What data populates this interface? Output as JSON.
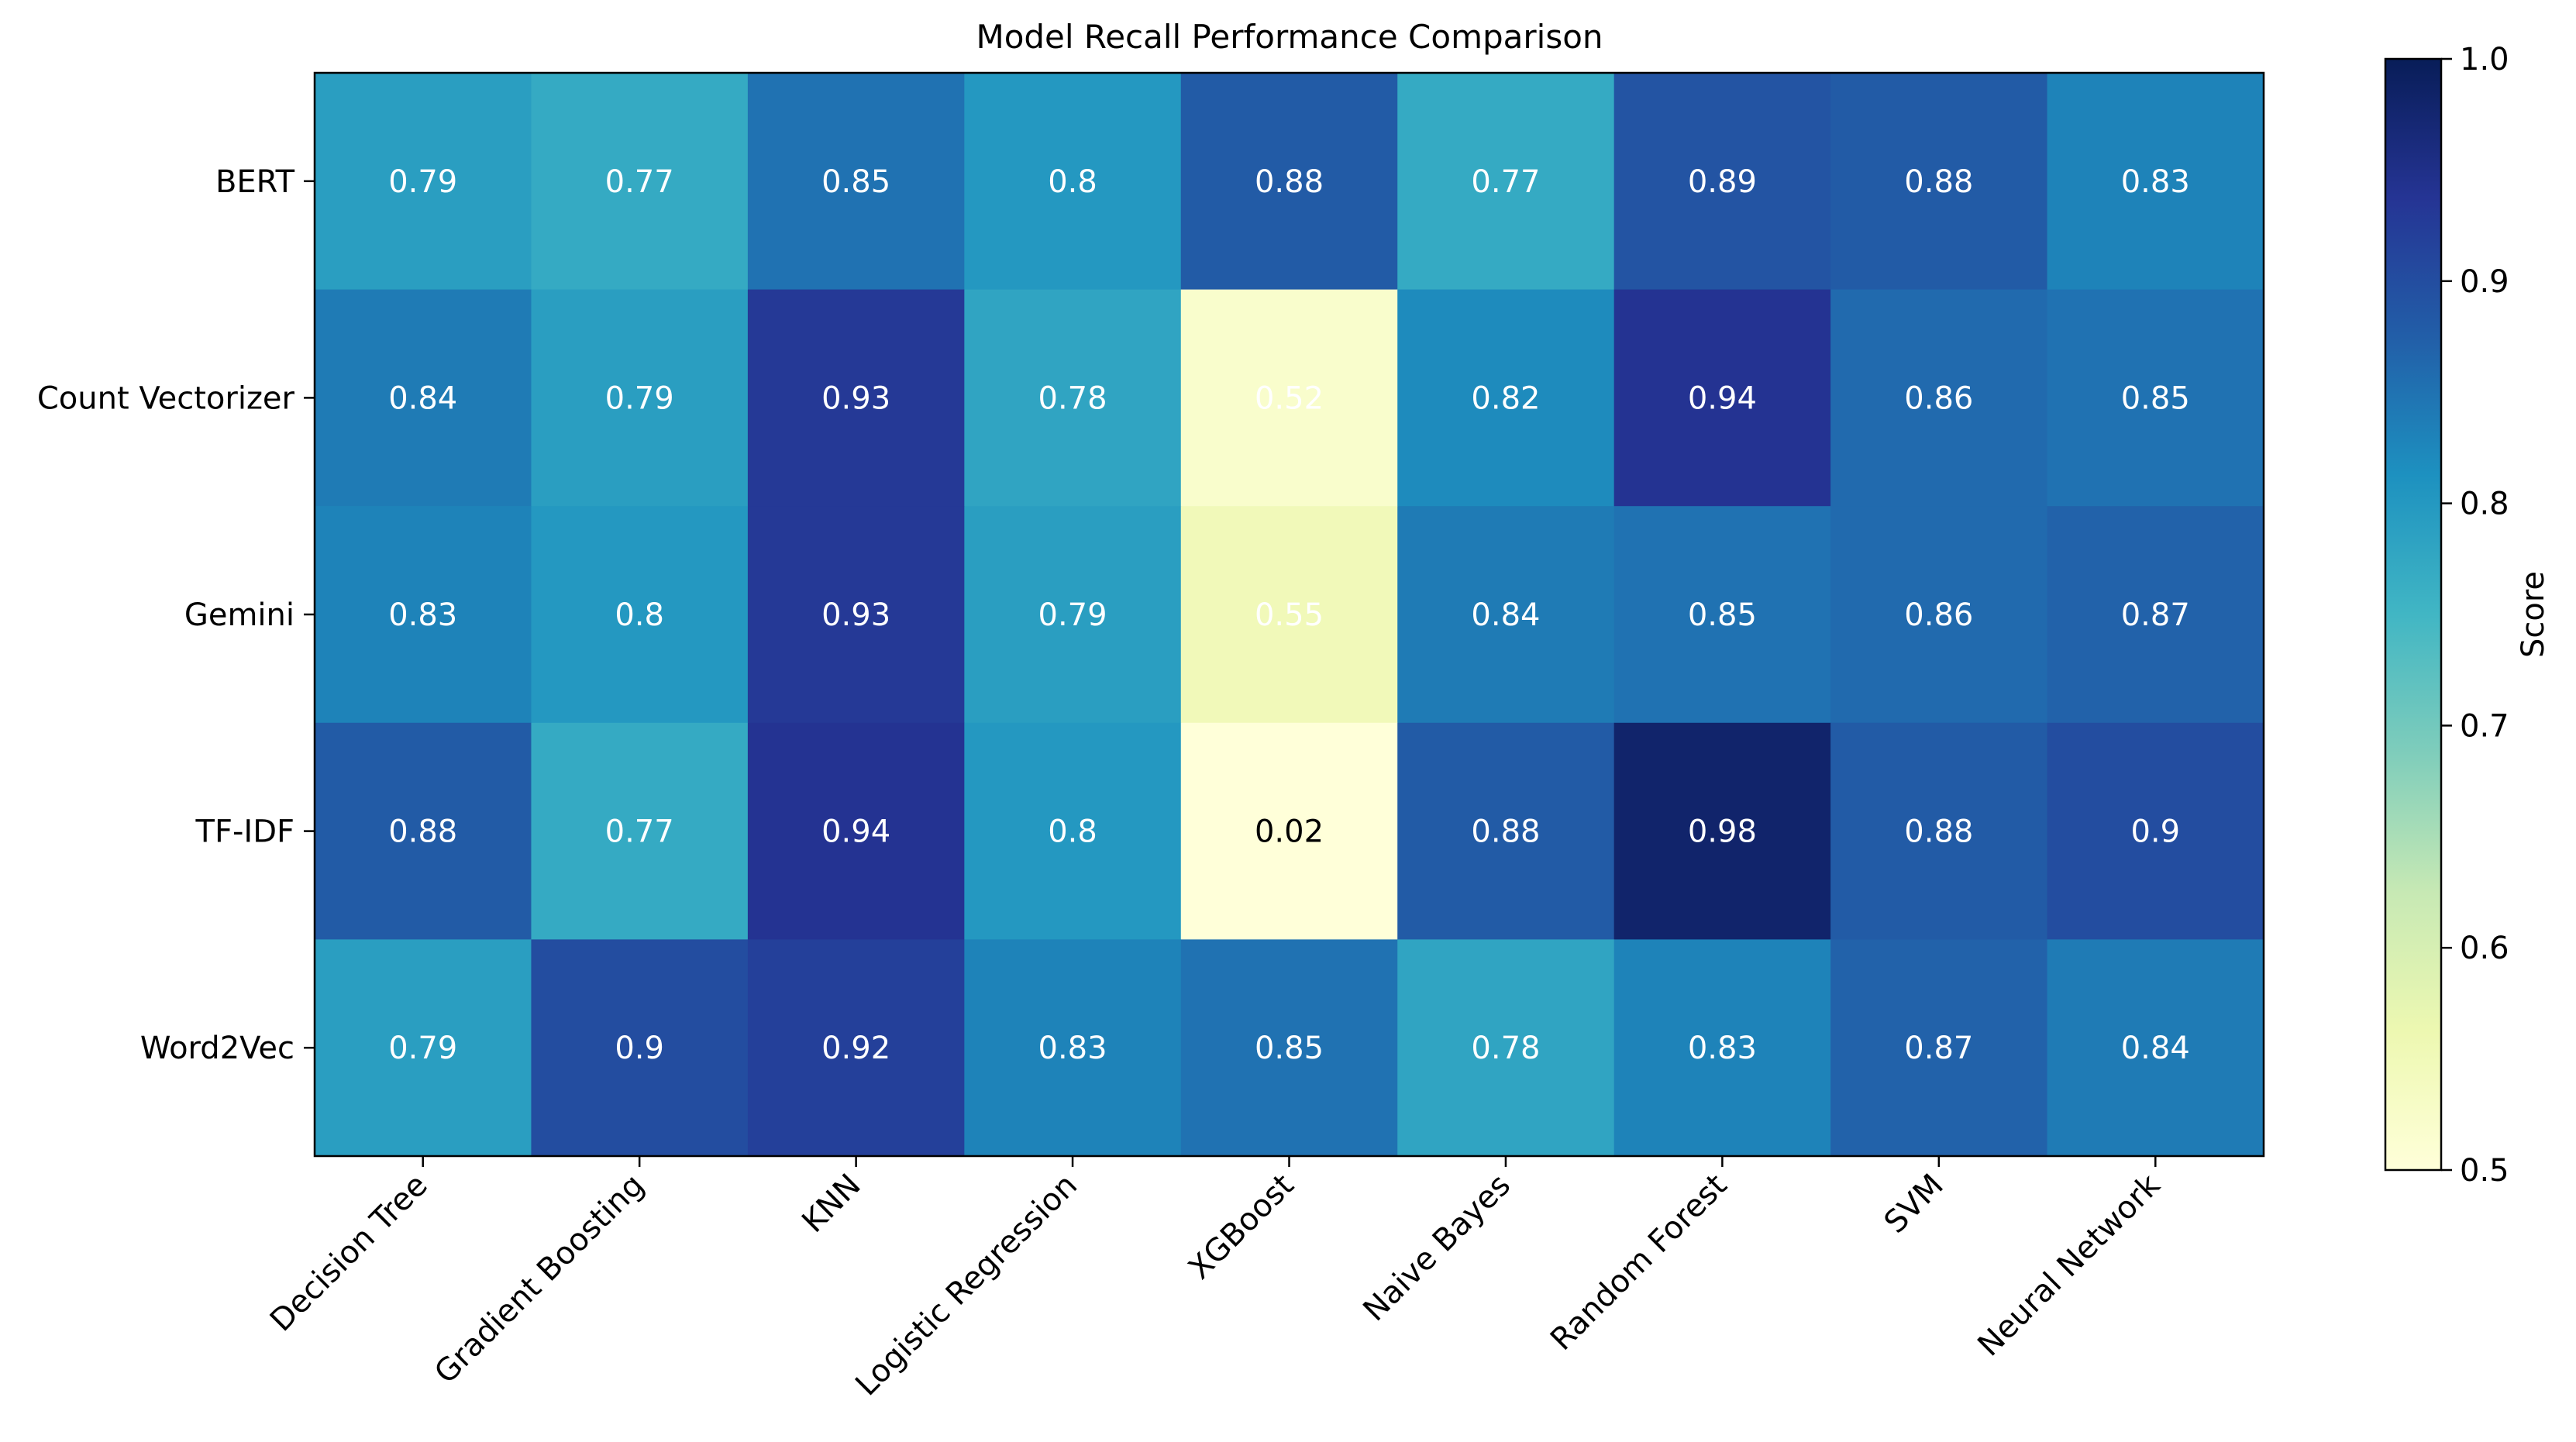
{
  "chart_data": {
    "type": "heatmap",
    "title": "Model Recall Performance Comparison",
    "xlabel": "",
    "ylabel": "",
    "x_categories": [
      "Decision Tree",
      "Gradient Boosting",
      "KNN",
      "Logistic Regression",
      "XGBoost",
      "Naive Bayes",
      "Random Forest",
      "SVM",
      "Neural Network"
    ],
    "y_categories": [
      "BERT",
      "Count Vectorizer",
      "Gemini",
      "TF-IDF",
      "Word2Vec"
    ],
    "values": [
      [
        0.79,
        0.77,
        0.85,
        0.8,
        0.88,
        0.77,
        0.89,
        0.88,
        0.83
      ],
      [
        0.84,
        0.79,
        0.93,
        0.78,
        0.52,
        0.82,
        0.94,
        0.86,
        0.85
      ],
      [
        0.83,
        0.8,
        0.93,
        0.79,
        0.55,
        0.84,
        0.85,
        0.86,
        0.87
      ],
      [
        0.88,
        0.77,
        0.94,
        0.8,
        0.02,
        0.88,
        0.98,
        0.88,
        0.9
      ],
      [
        0.79,
        0.9,
        0.92,
        0.83,
        0.85,
        0.78,
        0.83,
        0.87,
        0.84
      ]
    ],
    "value_labels": [
      [
        "0.79",
        "0.77",
        "0.85",
        "0.8",
        "0.88",
        "0.77",
        "0.89",
        "0.88",
        "0.83"
      ],
      [
        "0.84",
        "0.79",
        "0.93",
        "0.78",
        "0.52",
        "0.82",
        "0.94",
        "0.86",
        "0.85"
      ],
      [
        "0.83",
        "0.8",
        "0.93",
        "0.79",
        "0.55",
        "0.84",
        "0.85",
        "0.86",
        "0.87"
      ],
      [
        "0.88",
        "0.77",
        "0.94",
        "0.8",
        "0.02",
        "0.88",
        "0.98",
        "0.88",
        "0.9"
      ],
      [
        "0.79",
        "0.9",
        "0.92",
        "0.83",
        "0.85",
        "0.78",
        "0.83",
        "0.87",
        "0.84"
      ]
    ],
    "colorbar": {
      "label": "Score",
      "vmin": 0.5,
      "vmax": 1.0,
      "ticks": [
        "0.5",
        "0.6",
        "0.7",
        "0.8",
        "0.9",
        "1.0"
      ],
      "colormap": "YlGnBu"
    },
    "grid": false
  }
}
